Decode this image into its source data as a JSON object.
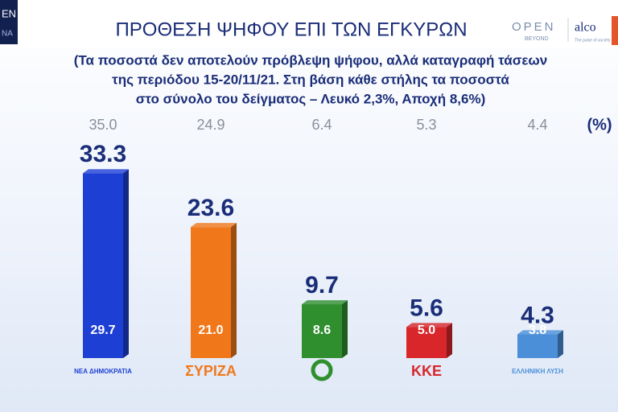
{
  "branding": {
    "left": "EN",
    "left_sub": "NA",
    "open": "OPEN",
    "open_sub": "BEYOND",
    "alco": "alco",
    "alco_sub": "The pulse of society"
  },
  "chart_data": {
    "type": "bar",
    "title": "ΠΡΟΘΕΣΗ ΨΗΦΟΥ ΕΠΙ ΤΩΝ ΕΓΚΥΡΩΝ",
    "subtitle": [
      "(Τα ποσοστά δεν αποτελούν πρόβλεψη ψήφου, αλλά καταγραφή τάσεων",
      "της περιόδου 15-20/11/21.  Στη βάση κάθε στήλης τα ποσοστά",
      "στο σύνολο του δείγματος – Λευκό 2,3%, Αποχή 8,6%)"
    ],
    "unit": "(%)",
    "categories": [
      "ΝΕΑ ΔΗΜΟΚΡΑΤΙΑ",
      "ΣΥΡΙΖΑ",
      null,
      "ΚΚΕ",
      "ΕΛΛΗΝΙΚΗ ΛΥΣΗ"
    ],
    "series": [
      {
        "colors": [
          "#1d3fd4",
          "#f0781a",
          "#2f8f2f",
          "#d8262b",
          "#4b8fd9"
        ],
        "values": [
          33.3,
          23.6,
          9.7,
          5.6,
          4.3
        ]
      },
      {
        "values": [
          29.7,
          21.0,
          8.6,
          5.0,
          3.8
        ],
        "value_labels": [
          "29.7",
          "21.0",
          "8.6",
          "5.0",
          "3.8"
        ]
      },
      {
        "color": "#8a8f99",
        "values": [
          35.0,
          24.9,
          6.4,
          5.3,
          4.4
        ],
        "value_labels": [
          "35.0",
          "24.9",
          "6.4",
          "5.3",
          "4.4"
        ]
      }
    ]
  }
}
